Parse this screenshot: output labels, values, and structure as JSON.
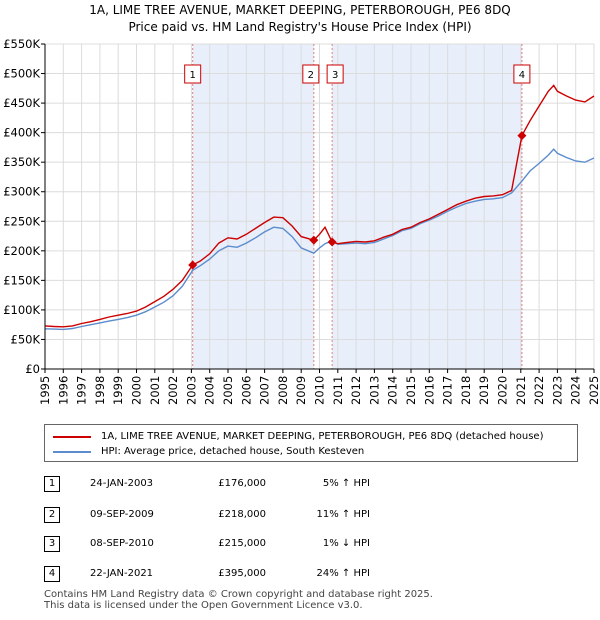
{
  "title_line1": "1A, LIME TREE AVENUE, MARKET DEEPING, PETERBOROUGH, PE6 8DQ",
  "title_line2": "Price paid vs. HM Land Registry's House Price Index (HPI)",
  "chart_data": {
    "type": "line",
    "y_ticks": [
      "£0",
      "£50K",
      "£100K",
      "£150K",
      "£200K",
      "£250K",
      "£300K",
      "£350K",
      "£400K",
      "£450K",
      "£500K",
      "£550K"
    ],
    "y_tick_values": [
      0,
      50000,
      100000,
      150000,
      200000,
      250000,
      300000,
      350000,
      400000,
      450000,
      500000,
      550000
    ],
    "ylim": [
      0,
      550000
    ],
    "x_ticks": [
      "1995",
      "1996",
      "1997",
      "1998",
      "1999",
      "2000",
      "2001",
      "2002",
      "2003",
      "2004",
      "2005",
      "2006",
      "2007",
      "2008",
      "2009",
      "2010",
      "2011",
      "2012",
      "2013",
      "2014",
      "2015",
      "2016",
      "2017",
      "2018",
      "2019",
      "2020",
      "2021",
      "2022",
      "2023",
      "2024",
      "2025"
    ],
    "xlim": [
      1995.0,
      2025.0
    ],
    "series": [
      {
        "name": "1A, LIME TREE AVENUE, MARKET DEEPING, PETERBOROUGH, PE6 8DQ (detached house)",
        "color": "#cc0000",
        "points": [
          [
            1995.0,
            73000
          ],
          [
            1995.5,
            72000
          ],
          [
            1996.0,
            71500
          ],
          [
            1996.5,
            73000
          ],
          [
            1997.0,
            77000
          ],
          [
            1997.5,
            80000
          ],
          [
            1998.0,
            84000
          ],
          [
            1998.5,
            88000
          ],
          [
            1999.0,
            91000
          ],
          [
            1999.5,
            94000
          ],
          [
            2000.0,
            98000
          ],
          [
            2000.5,
            105000
          ],
          [
            2001.0,
            114000
          ],
          [
            2001.5,
            123000
          ],
          [
            2002.0,
            135000
          ],
          [
            2002.5,
            150000
          ],
          [
            2003.07,
            176000
          ],
          [
            2003.5,
            183000
          ],
          [
            2004.0,
            195000
          ],
          [
            2004.5,
            213000
          ],
          [
            2005.0,
            222000
          ],
          [
            2005.5,
            220000
          ],
          [
            2006.0,
            228000
          ],
          [
            2006.5,
            238000
          ],
          [
            2007.0,
            248000
          ],
          [
            2007.5,
            257000
          ],
          [
            2008.0,
            256000
          ],
          [
            2008.5,
            242000
          ],
          [
            2009.0,
            224000
          ],
          [
            2009.69,
            218000
          ],
          [
            2010.0,
            228000
          ],
          [
            2010.3,
            240000
          ],
          [
            2010.69,
            215000
          ],
          [
            2011.0,
            212000
          ],
          [
            2011.5,
            214000
          ],
          [
            2012.0,
            216000
          ],
          [
            2012.5,
            215000
          ],
          [
            2013.0,
            217000
          ],
          [
            2013.5,
            223000
          ],
          [
            2014.0,
            228000
          ],
          [
            2014.5,
            236000
          ],
          [
            2015.0,
            240000
          ],
          [
            2015.5,
            248000
          ],
          [
            2016.0,
            254000
          ],
          [
            2016.5,
            262000
          ],
          [
            2017.0,
            270000
          ],
          [
            2017.5,
            278000
          ],
          [
            2018.0,
            284000
          ],
          [
            2018.5,
            289000
          ],
          [
            2019.0,
            292000
          ],
          [
            2019.5,
            293000
          ],
          [
            2020.0,
            295000
          ],
          [
            2020.5,
            302000
          ],
          [
            2021.06,
            395000
          ],
          [
            2021.5,
            420000
          ],
          [
            2022.0,
            445000
          ],
          [
            2022.5,
            470000
          ],
          [
            2022.8,
            480000
          ],
          [
            2023.0,
            470000
          ],
          [
            2023.5,
            462000
          ],
          [
            2024.0,
            455000
          ],
          [
            2024.5,
            452000
          ],
          [
            2025.0,
            462000
          ]
        ]
      },
      {
        "name": "HPI: Average price, detached house, South Kesteven",
        "color": "#5b8ccc",
        "points": [
          [
            1995.0,
            68000
          ],
          [
            1995.5,
            67500
          ],
          [
            1996.0,
            67000
          ],
          [
            1996.5,
            68500
          ],
          [
            1997.0,
            72000
          ],
          [
            1997.5,
            75000
          ],
          [
            1998.0,
            78000
          ],
          [
            1998.5,
            81000
          ],
          [
            1999.0,
            84000
          ],
          [
            1999.5,
            87000
          ],
          [
            2000.0,
            91000
          ],
          [
            2000.5,
            97000
          ],
          [
            2001.0,
            105000
          ],
          [
            2001.5,
            113000
          ],
          [
            2002.0,
            124000
          ],
          [
            2002.5,
            140000
          ],
          [
            2003.07,
            167000
          ],
          [
            2003.5,
            175000
          ],
          [
            2004.0,
            186000
          ],
          [
            2004.5,
            200000
          ],
          [
            2005.0,
            208000
          ],
          [
            2005.5,
            206000
          ],
          [
            2006.0,
            213000
          ],
          [
            2006.5,
            222000
          ],
          [
            2007.0,
            232000
          ],
          [
            2007.5,
            240000
          ],
          [
            2008.0,
            238000
          ],
          [
            2008.5,
            224000
          ],
          [
            2009.0,
            205000
          ],
          [
            2009.69,
            196000
          ],
          [
            2010.0,
            205000
          ],
          [
            2010.3,
            212000
          ],
          [
            2010.69,
            217000
          ],
          [
            2011.0,
            211000
          ],
          [
            2011.5,
            212000
          ],
          [
            2012.0,
            213000
          ],
          [
            2012.5,
            212000
          ],
          [
            2013.0,
            214000
          ],
          [
            2013.5,
            220000
          ],
          [
            2014.0,
            226000
          ],
          [
            2014.5,
            234000
          ],
          [
            2015.0,
            238000
          ],
          [
            2015.5,
            246000
          ],
          [
            2016.0,
            252000
          ],
          [
            2016.5,
            259000
          ],
          [
            2017.0,
            267000
          ],
          [
            2017.5,
            274000
          ],
          [
            2018.0,
            280000
          ],
          [
            2018.5,
            284000
          ],
          [
            2019.0,
            287000
          ],
          [
            2019.5,
            288000
          ],
          [
            2020.0,
            290000
          ],
          [
            2020.5,
            298000
          ],
          [
            2021.06,
            318000
          ],
          [
            2021.5,
            335000
          ],
          [
            2022.0,
            348000
          ],
          [
            2022.5,
            362000
          ],
          [
            2022.8,
            372000
          ],
          [
            2023.0,
            365000
          ],
          [
            2023.5,
            358000
          ],
          [
            2024.0,
            352000
          ],
          [
            2024.5,
            350000
          ],
          [
            2025.0,
            357000
          ]
        ]
      }
    ],
    "sales": [
      {
        "label": "1",
        "year": 2003.07,
        "price": 176000
      },
      {
        "label": "2",
        "year": 2009.69,
        "price": 218000
      },
      {
        "label": "3",
        "year": 2010.69,
        "price": 215000
      },
      {
        "label": "4",
        "year": 2021.06,
        "price": 395000
      }
    ],
    "shaded_ranges": [
      [
        2003.07,
        2009.69
      ],
      [
        2010.69,
        2021.06
      ]
    ]
  },
  "legend": {
    "property_label": "1A, LIME TREE AVENUE, MARKET DEEPING, PETERBOROUGH, PE6 8DQ (detached house)",
    "hpi_label": "HPI: Average price, detached house, South Kesteven",
    "property_color": "#cc0000",
    "hpi_color": "#5b8ccc"
  },
  "sales_table": [
    {
      "num": "1",
      "date": "24-JAN-2003",
      "price": "£176,000",
      "hpi": "5% ↑ HPI"
    },
    {
      "num": "2",
      "date": "09-SEP-2009",
      "price": "£218,000",
      "hpi": "11% ↑ HPI"
    },
    {
      "num": "3",
      "date": "08-SEP-2010",
      "price": "£215,000",
      "hpi": "1% ↓ HPI"
    },
    {
      "num": "4",
      "date": "22-JAN-2021",
      "price": "£395,000",
      "hpi": "24% ↑ HPI"
    }
  ],
  "footer_line1": "Contains HM Land Registry data © Crown copyright and database right 2025.",
  "footer_line2": "This data is licensed under the Open Government Licence v3.0."
}
